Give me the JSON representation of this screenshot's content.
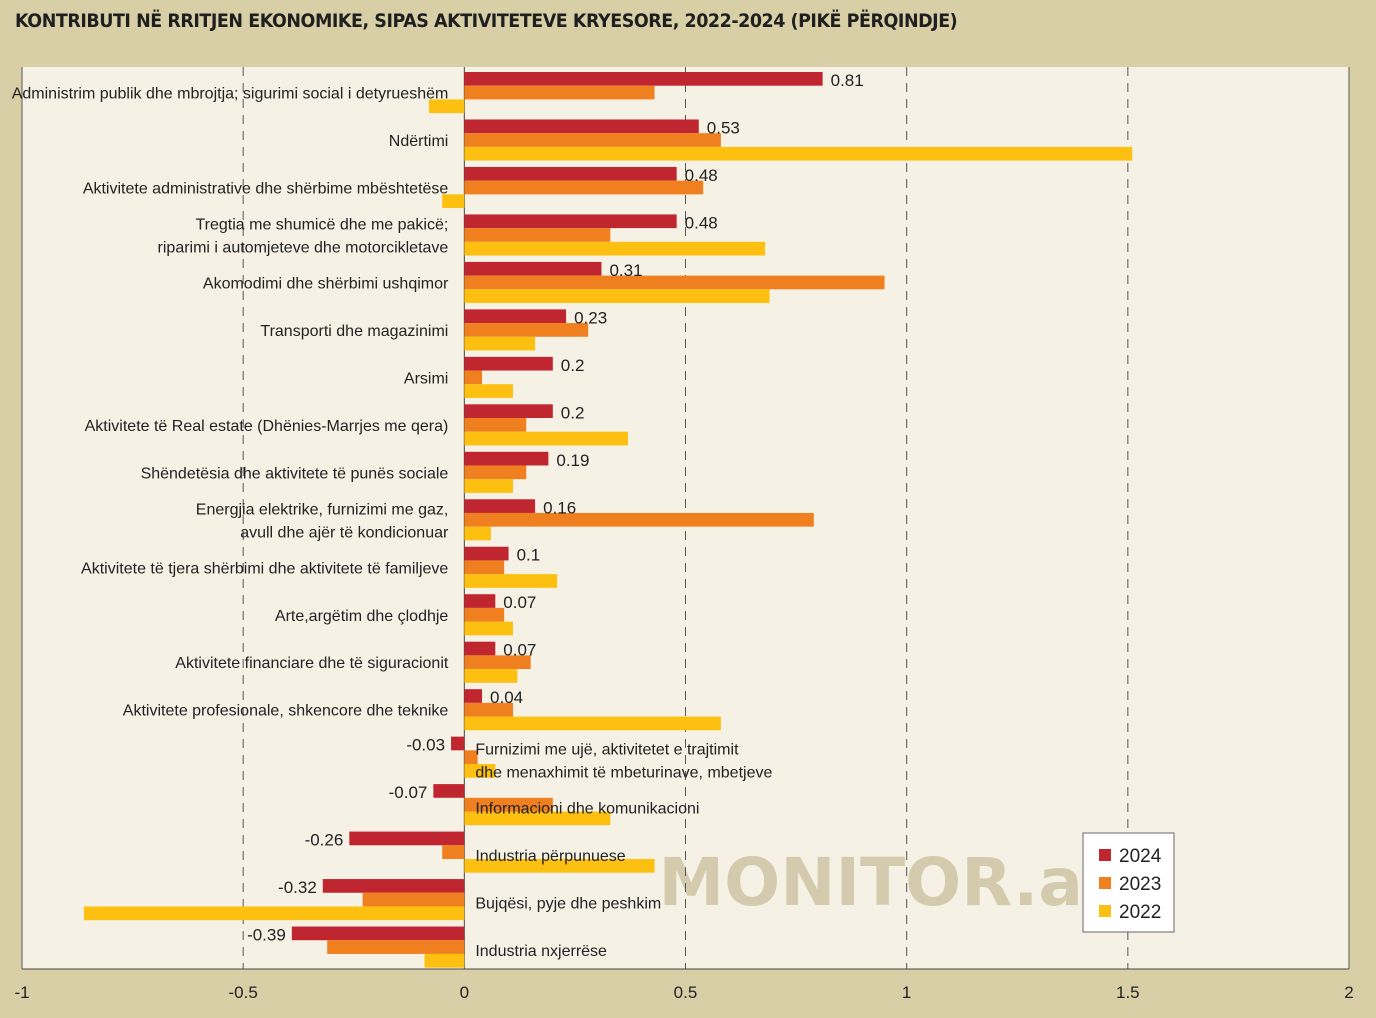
{
  "chart_data": {
    "type": "bar",
    "orientation": "horizontal",
    "title": "KONTRIBUTI NË RRITJEN EKONOMIKE, SIPAS AKTIVITETEVE KRYESORE, 2022-2024 (PIKË PËRQINDJE)",
    "watermark": "MONITOR.al",
    "xlim": [
      -1,
      2
    ],
    "xticks": [
      -1,
      -0.5,
      0,
      0.5,
      1,
      1.5,
      2
    ],
    "xtick_labels": [
      "-1",
      "-0.5",
      "0",
      "0.5",
      "1",
      "1.5",
      "2"
    ],
    "grid": "vertical dashed",
    "legend_position": "bottom-right",
    "colors": {
      "2024": "#c0262f",
      "2023": "#f07f1f",
      "2022": "#fdc010",
      "plot_bg": "#f5f2e5",
      "page_bg": "#d9cfa6"
    },
    "categories": [
      [
        "Administrim publik dhe mbrojtja; sigurimi social i detyrueshëm"
      ],
      [
        "Ndërtimi"
      ],
      [
        "Aktivitete administrative dhe shërbime mbështetëse"
      ],
      [
        "Tregtia me shumicë dhe me pakicë;",
        "riparimi i automjeteve dhe motorcikletave"
      ],
      [
        "Akomodimi dhe shërbimi ushqimor"
      ],
      [
        "Transporti dhe magazinimi"
      ],
      [
        "Arsimi"
      ],
      [
        "Aktivitete të Real estate (Dhënies-Marrjes me qera)"
      ],
      [
        "Shëndetësia dhe aktivitete të punës sociale"
      ],
      [
        "Energjia elektrike, furnizimi me gaz,",
        "avull dhe ajër të kondicionuar"
      ],
      [
        "Aktivitete të tjera shërbimi dhe aktivitete të familjeve"
      ],
      [
        "Arte,argëtim dhe çlodhje"
      ],
      [
        "Aktivitete financiare dhe të siguracionit"
      ],
      [
        "Aktivitete profesionale, shkencore dhe teknike"
      ],
      [
        "Furnizimi me ujë, aktivitetet e trajtimit",
        "dhe menaxhimit të mbeturinave, mbetjeve"
      ],
      [
        "Informacioni dhe komunikacioni"
      ],
      [
        "Industria përpunuese"
      ],
      [
        "Bujqësi, pyje dhe peshkim"
      ],
      [
        "Industria nxjerrëse"
      ]
    ],
    "series": [
      {
        "name": "2024",
        "values": [
          0.81,
          0.53,
          0.48,
          0.48,
          0.31,
          0.23,
          0.2,
          0.2,
          0.19,
          0.16,
          0.1,
          0.07,
          0.07,
          0.04,
          -0.03,
          -0.07,
          -0.26,
          -0.32,
          -0.39
        ],
        "labels": [
          "0.81",
          "0.53",
          "0.48",
          "0.48",
          "0.31",
          "0.23",
          "0.2",
          "0.2",
          "0.19",
          "0.16",
          "0.1",
          "0.07",
          "0.07",
          "0.04",
          "-0.03",
          "-0.07",
          "-0.26",
          "-0.32",
          "-0.39"
        ]
      },
      {
        "name": "2023",
        "values": [
          0.43,
          0.58,
          0.54,
          0.33,
          0.95,
          0.28,
          0.04,
          0.14,
          0.14,
          0.79,
          0.09,
          0.09,
          0.15,
          0.11,
          0.03,
          0.2,
          -0.05,
          -0.23,
          -0.31
        ]
      },
      {
        "name": "2022",
        "values": [
          -0.08,
          1.51,
          -0.05,
          0.68,
          0.69,
          0.16,
          0.11,
          0.37,
          0.11,
          0.06,
          0.21,
          0.11,
          0.12,
          0.58,
          0.07,
          0.33,
          0.43,
          -0.86,
          -0.09
        ]
      }
    ]
  }
}
